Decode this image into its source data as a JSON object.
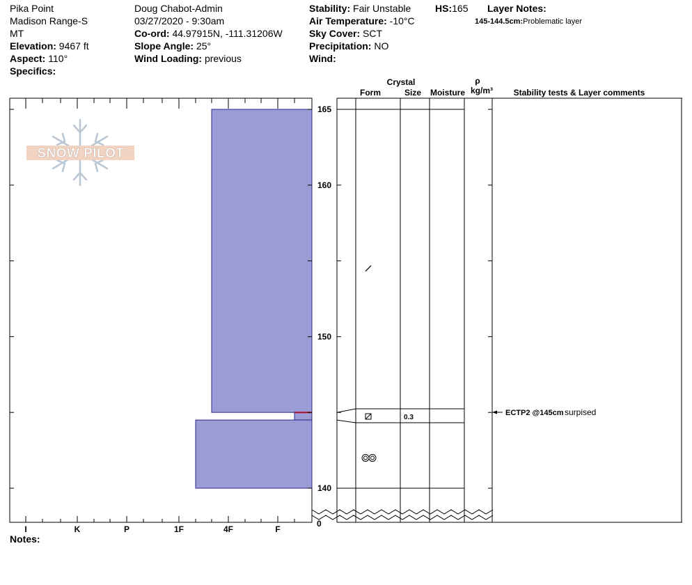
{
  "header": {
    "col1": {
      "location": "Pika Point",
      "range": "Madison Range-S",
      "state": "MT",
      "elevation_label": "Elevation:",
      "elevation_value": "9467 ft",
      "aspect_label": "Aspect:",
      "aspect_value": "110°",
      "specifics_label": "Specifics:"
    },
    "col2": {
      "observer": "Doug Chabot-Admin",
      "datetime": "03/27/2020 - 9:30am",
      "coord_label": "Co-ord:",
      "coord_value": "44.97915N, -111.31206W",
      "slope_label": "Slope Angle:",
      "slope_value": "25°",
      "wind_loading_label": "Wind Loading:",
      "wind_loading_value": "previous"
    },
    "col3": {
      "stability_label": "Stability:",
      "stability_value": "Fair Unstable",
      "air_temp_label": "Air Temperature:",
      "air_temp_value": "-10°C",
      "sky_label": "Sky Cover:",
      "sky_value": "SCT",
      "precip_label": "Precipitation:",
      "precip_value": "NO",
      "wind_label": "Wind:"
    },
    "col4": {
      "hs_label": "HS:",
      "hs_value": "165",
      "layer_notes_label": "Layer Notes:",
      "layer_note_depth": "145-144.5cm:",
      "layer_note_text": "Problematic layer"
    }
  },
  "logo_text": "SNOW PILOT",
  "column_headers": {
    "crystal": "Crystal",
    "form": "Form",
    "size": "Size",
    "moisture": "Moisture",
    "rho": "ρ",
    "density_unit": "kg/m³",
    "stability": "Stability tests & Layer comments"
  },
  "notes_label": "Notes:",
  "chart_data": {
    "type": "bar",
    "hardness_axis": [
      "I",
      "K",
      "P",
      "1F",
      "4F",
      "F"
    ],
    "depth_range_cm": [
      138,
      165
    ],
    "depth_ticks": [
      165,
      160,
      150,
      140
    ],
    "depth_bottom_label": "0",
    "layers": [
      {
        "top": 165,
        "bottom": 145,
        "hardness": "4F-"
      },
      {
        "top": 145,
        "bottom": 144.5,
        "hardness": "F+"
      },
      {
        "top": 144.5,
        "bottom": 140,
        "hardness": "1F+"
      }
    ],
    "grain_symbols": [
      {
        "depth": 154.5,
        "symbol": "precipitation-particle"
      },
      {
        "depth": 144.8,
        "symbol": "faceted"
      },
      {
        "depth": 142,
        "symbol": "rounded-grains"
      }
    ],
    "layer_boundaries": [
      145.3,
      144.2
    ],
    "layer_size": {
      "depth": 144.8,
      "value": "0.3"
    },
    "stability_tests": [
      {
        "depth": 145,
        "code": "ECTP2 @145cm",
        "comment": "surpised"
      }
    ]
  }
}
